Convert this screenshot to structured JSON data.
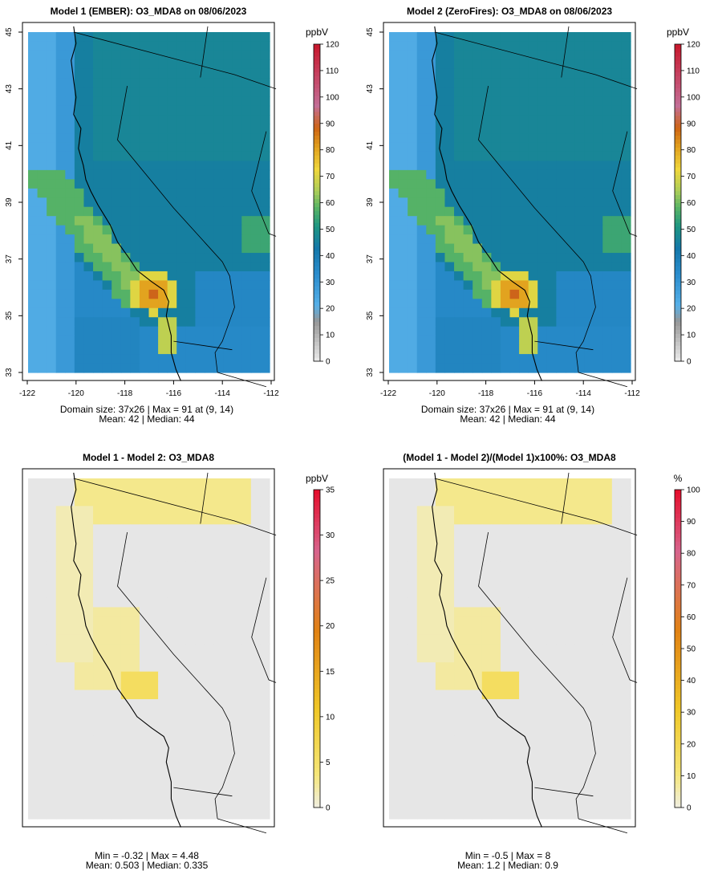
{
  "panels": [
    {
      "title": "Model 1 (EMBER): O3_MDA8 on 08/06/2023",
      "xticks": [
        "-122",
        "-120",
        "-118",
        "-116",
        "-114",
        "-112"
      ],
      "yticks": [
        "45",
        "43",
        "41",
        "39",
        "37",
        "35",
        "33"
      ],
      "stats_line1": "Domain size: 37x26 | Max = 91 at (9, 14)",
      "stats_line2": "Mean: 42 |  Median: 44",
      "colorbar": {
        "unit": "ppbV",
        "labels": [
          "120",
          "110",
          "100",
          "90",
          "80",
          "70",
          "60",
          "50",
          "40",
          "30",
          "20",
          "10",
          "0"
        ]
      }
    },
    {
      "title": "Model 2 (ZeroFires): O3_MDA8 on 08/06/2023",
      "xticks": [
        "-122",
        "-120",
        "-118",
        "-116",
        "-114",
        "-112"
      ],
      "yticks": [
        "45",
        "43",
        "41",
        "39",
        "37",
        "35",
        "33"
      ],
      "stats_line1": "Domain size: 37x26 | Max = 91 at (9, 14)",
      "stats_line2": "Mean: 42 |  Median: 44",
      "colorbar": {
        "unit": "ppbV",
        "labels": [
          "120",
          "110",
          "100",
          "90",
          "80",
          "70",
          "60",
          "50",
          "40",
          "30",
          "20",
          "10",
          "0"
        ]
      }
    },
    {
      "title": "Model 1 - Model 2: O3_MDA8",
      "xticks": [],
      "yticks": [],
      "stats_line1": "Min = -0.32 | Max = 4.48",
      "stats_line2": "Mean: 0.503 |  Median: 0.335",
      "colorbar": {
        "unit": "ppbV",
        "labels": [
          "35",
          "30",
          "25",
          "20",
          "15",
          "10",
          "5",
          "0"
        ]
      }
    },
    {
      "title": "(Model 1 - Model 2)/(Model 1)x100%: O3_MDA8",
      "xticks": [],
      "yticks": [],
      "stats_line1": "Min = -0.5 | Max = 8",
      "stats_line2": "Mean: 1.2 |  Median: 0.9",
      "colorbar": {
        "unit": "%",
        "labels": [
          "100",
          "90",
          "80",
          "70",
          "60",
          "50",
          "40",
          "30",
          "20",
          "10",
          "0"
        ]
      }
    }
  ],
  "chart_data": [
    {
      "type": "heatmap",
      "title": "Model 1 (EMBER): O3_MDA8 on 08/06/2023",
      "grid_size": "37x26",
      "xlim": [
        -122,
        -112
      ],
      "ylim": [
        33,
        45
      ],
      "value_range": [
        0,
        120
      ],
      "unit": "ppbV",
      "max": 91,
      "max_at": [
        9,
        14
      ],
      "mean": 42,
      "median": 44
    },
    {
      "type": "heatmap",
      "title": "Model 2 (ZeroFires): O3_MDA8 on 08/06/2023",
      "grid_size": "37x26",
      "xlim": [
        -122,
        -112
      ],
      "ylim": [
        33,
        45
      ],
      "value_range": [
        0,
        120
      ],
      "unit": "ppbV",
      "max": 91,
      "max_at": [
        9,
        14
      ],
      "mean": 42,
      "median": 44
    },
    {
      "type": "heatmap",
      "title": "Model 1 - Model 2: O3_MDA8",
      "value_range": [
        0,
        35
      ],
      "unit": "ppbV",
      "min": -0.32,
      "max": 4.48,
      "mean": 0.503,
      "median": 0.335
    },
    {
      "type": "heatmap",
      "title": "(Model 1 - Model 2)/(Model 1)x100%: O3_MDA8",
      "value_range": [
        0,
        100
      ],
      "unit": "%",
      "min": -0.5,
      "max": 8,
      "mean": 1.2,
      "median": 0.9
    }
  ]
}
